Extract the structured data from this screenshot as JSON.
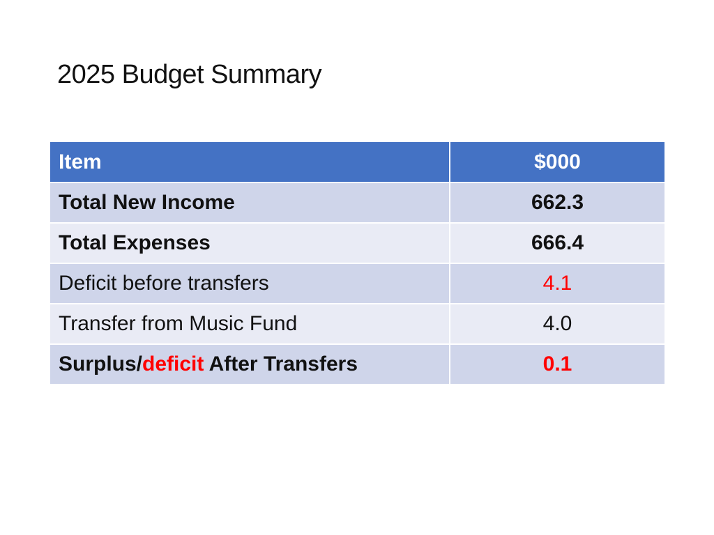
{
  "title": "2025 Budget Summary",
  "table": {
    "header": {
      "item": "Item",
      "value": "$000"
    },
    "rows": [
      {
        "item": "Total New Income",
        "value": "662.3"
      },
      {
        "item": "Total Expenses",
        "value": "666.4"
      },
      {
        "item": "Deficit before transfers",
        "value": "4.1"
      },
      {
        "item": "Transfer from Music Fund",
        "value": "4.0"
      },
      {
        "item_part1": "Surplus/",
        "item_part2": "deficit",
        "item_part3": " After Transfers",
        "value": "0.1"
      }
    ]
  },
  "colors": {
    "header_bg": "#4472c4",
    "row_odd_bg": "#cfd5ea",
    "row_even_bg": "#e9ebf5",
    "deficit_red": "#ff0000"
  }
}
